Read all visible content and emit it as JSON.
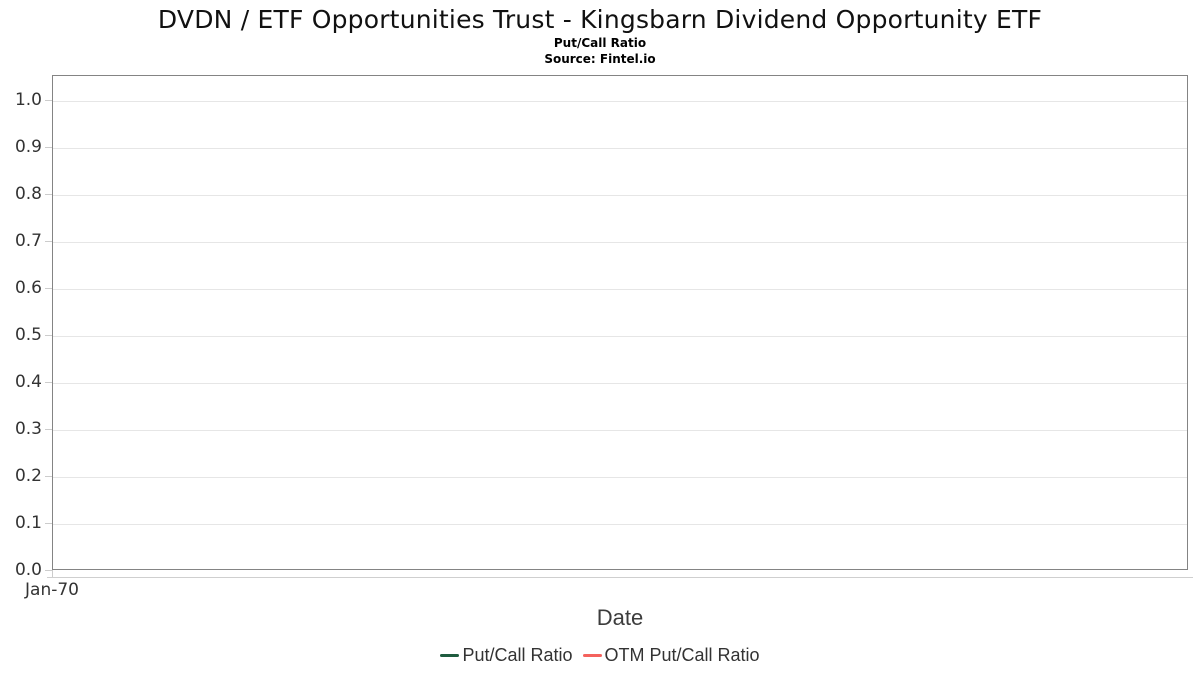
{
  "header": {
    "title": "DVDN / ETF Opportunities Trust - Kingsbarn Dividend Opportunity ETF",
    "subtitle": "Put/Call Ratio",
    "source": "Source: Fintel.io"
  },
  "chart_data": {
    "type": "line",
    "title": "DVDN / ETF Opportunities Trust - Kingsbarn Dividend Opportunity ETF",
    "subtitle": "Put/Call Ratio",
    "source": "Source: Fintel.io",
    "xlabel": "Date",
    "ylabel": "",
    "ylim": [
      0.0,
      1.05
    ],
    "grid": true,
    "legend_position": "bottom",
    "y_tick_labels": [
      "0.0",
      "0.1",
      "0.2",
      "0.3",
      "0.4",
      "0.5",
      "0.6",
      "0.7",
      "0.8",
      "0.9",
      "1.0"
    ],
    "x_tick_labels": [
      "Jan-70"
    ],
    "x": [],
    "series": [
      {
        "name": "Put/Call Ratio",
        "color": "#1f5c3f",
        "values": []
      },
      {
        "name": "OTM Put/Call Ratio",
        "color": "#f4625d",
        "values": []
      }
    ],
    "note": "chart is empty - no data points plotted"
  },
  "colors": {
    "plot_border": "#848484",
    "gridline": "#e6e6e6",
    "tick": "#cccccc",
    "axis_label": "#333333",
    "series_green": "#1f5c3f",
    "series_red": "#f4625d"
  }
}
